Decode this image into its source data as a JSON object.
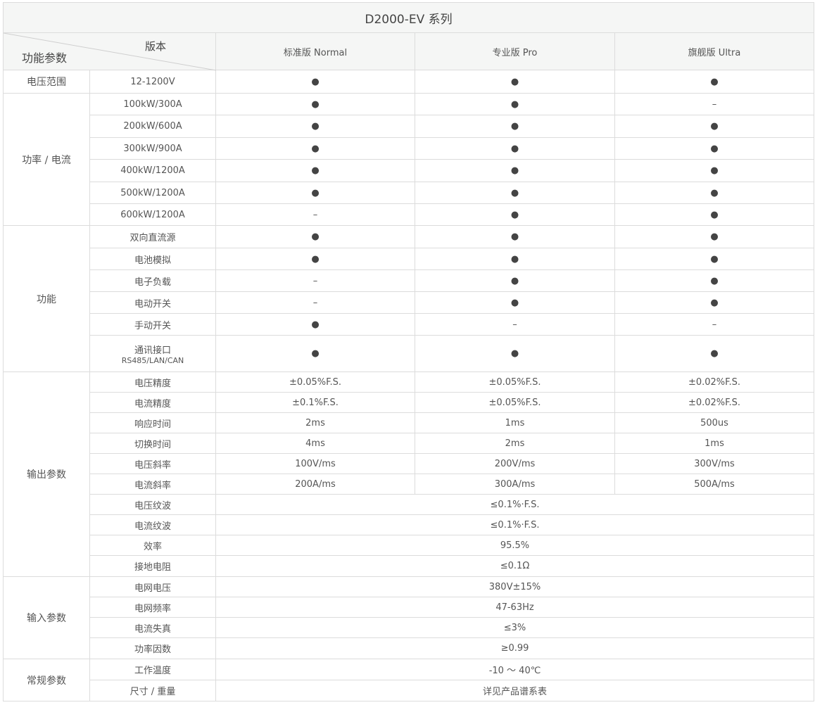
{
  "title": "D2000-EV 系列",
  "header": {
    "corner_top": "版本",
    "corner_bottom": "功能参数",
    "versions": [
      "标准版 Normal",
      "专业版 Pro",
      "旗舰版 Ultra"
    ]
  },
  "groups": [
    {
      "label": "电压范围",
      "rows": [
        {
          "param": "12-1200V",
          "values": [
            "●",
            "●",
            "●"
          ],
          "h": 33,
          "merged_label": true
        }
      ]
    },
    {
      "label": "功率 / 电流",
      "rows": [
        {
          "param": "100kW/300A",
          "values": [
            "●",
            "●",
            "–"
          ],
          "h": 31
        },
        {
          "param": "200kW/600A",
          "values": [
            "●",
            "●",
            "●"
          ],
          "h": 32
        },
        {
          "param": "300kW/900A",
          "values": [
            "●",
            "●",
            "●"
          ],
          "h": 31
        },
        {
          "param": "400kW/1200A",
          "values": [
            "●",
            "●",
            "●"
          ],
          "h": 32
        },
        {
          "param": "500kW/1200A",
          "values": [
            "●",
            "●",
            "●"
          ],
          "h": 31
        },
        {
          "param": "600kW/1200A",
          "values": [
            "–",
            "●",
            "●"
          ],
          "h": 31
        }
      ]
    },
    {
      "label": "功能",
      "rows": [
        {
          "param": "双向直流源",
          "values": [
            "●",
            "●",
            "●"
          ],
          "h": 32
        },
        {
          "param": "电池模拟",
          "values": [
            "●",
            "●",
            "●"
          ],
          "h": 31
        },
        {
          "param": "电子负载",
          "values": [
            "–",
            "●",
            "●"
          ],
          "h": 31
        },
        {
          "param": "电动开关",
          "values": [
            "–",
            "●",
            "●"
          ],
          "h": 31
        },
        {
          "param": "手动开关",
          "values": [
            "●",
            "–",
            "–"
          ],
          "h": 31
        },
        {
          "param": "通讯接口",
          "sub": "RS485/LAN/CAN",
          "values": [
            "●",
            "●",
            "●"
          ],
          "h": 52
        }
      ]
    },
    {
      "label": "输出参数",
      "rows": [
        {
          "param": "电压精度",
          "values": [
            "±0.05%F.S.",
            "±0.05%F.S.",
            "±0.02%F.S."
          ],
          "h": 29
        },
        {
          "param": "电流精度",
          "values": [
            "±0.1%F.S.",
            "±0.05%F.S.",
            "±0.02%F.S."
          ],
          "h": 29
        },
        {
          "param": "响应时间",
          "values": [
            "2ms",
            "1ms",
            "500us"
          ],
          "h": 29
        },
        {
          "param": "切换时间",
          "values": [
            "4ms",
            "2ms",
            "1ms"
          ],
          "h": 29
        },
        {
          "param": "电压斜率",
          "values": [
            "100V/ms",
            "200V/ms",
            "300V/ms"
          ],
          "h": 29
        },
        {
          "param": "电流斜率",
          "values": [
            "200A/ms",
            "300A/ms",
            "500A/ms"
          ],
          "h": 29
        },
        {
          "param": "电压纹波",
          "span": "≤0.1%·F.S.",
          "h": 29
        },
        {
          "param": "电流纹波",
          "span": "≤0.1%·F.S.",
          "h": 29
        },
        {
          "param": "效率",
          "span": "95.5%",
          "h": 29
        },
        {
          "param": "接地电阻",
          "span": "≤0.1Ω",
          "h": 30
        }
      ]
    },
    {
      "label": "输入参数",
      "rows": [
        {
          "param": "电网电压",
          "span": "380V±15%",
          "h": 29
        },
        {
          "param": "电网频率",
          "span": "47-63Hz",
          "h": 29
        },
        {
          "param": "电流失真",
          "span": "≤3%",
          "h": 29
        },
        {
          "param": "功率因数",
          "span": "≥0.99",
          "h": 30
        }
      ]
    },
    {
      "label": "常规参数",
      "rows": [
        {
          "param": "工作温度",
          "span": "-10 ～ 40℃",
          "h": 30
        },
        {
          "param": "尺寸 / 重量",
          "span": "详见产品谱系表",
          "h": 30
        }
      ]
    }
  ]
}
